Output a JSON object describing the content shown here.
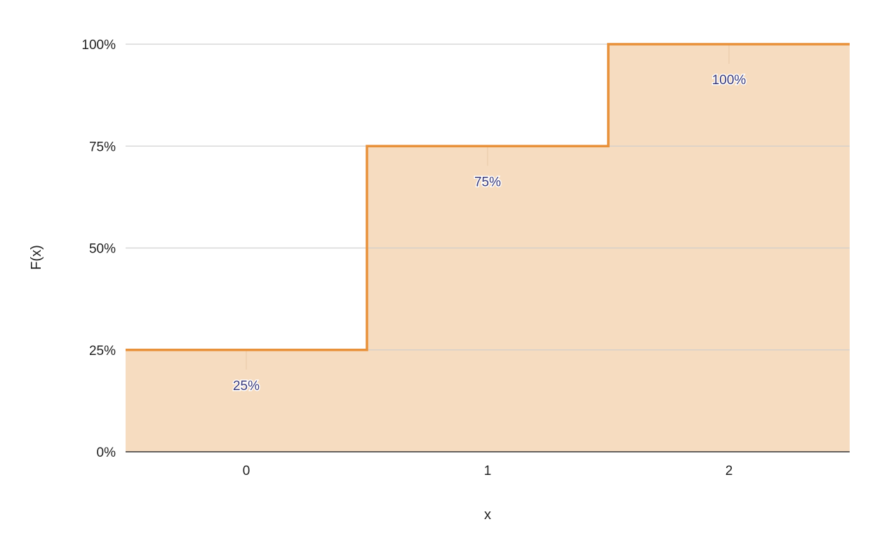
{
  "chart_data": {
    "type": "area",
    "step": true,
    "title": "",
    "xlabel": "x",
    "ylabel": "F(x)",
    "categories": [
      "0",
      "1",
      "2"
    ],
    "x": [
      0,
      1,
      2
    ],
    "series": [
      {
        "values": [
          0.25,
          0.75,
          1.0
        ]
      }
    ],
    "data_labels": [
      "25%",
      "75%",
      "100%"
    ],
    "yticks": [
      0,
      0.25,
      0.5,
      0.75,
      1.0
    ],
    "ytick_labels": [
      "0%",
      "25%",
      "50%",
      "75%",
      "100%"
    ],
    "ylim": [
      0,
      1
    ],
    "grid": true,
    "legend": "none",
    "colors": {
      "line": "#e8913a",
      "fill": "#f6dcc0",
      "grid": "#cccccc",
      "label": "#3b3b7a"
    }
  }
}
